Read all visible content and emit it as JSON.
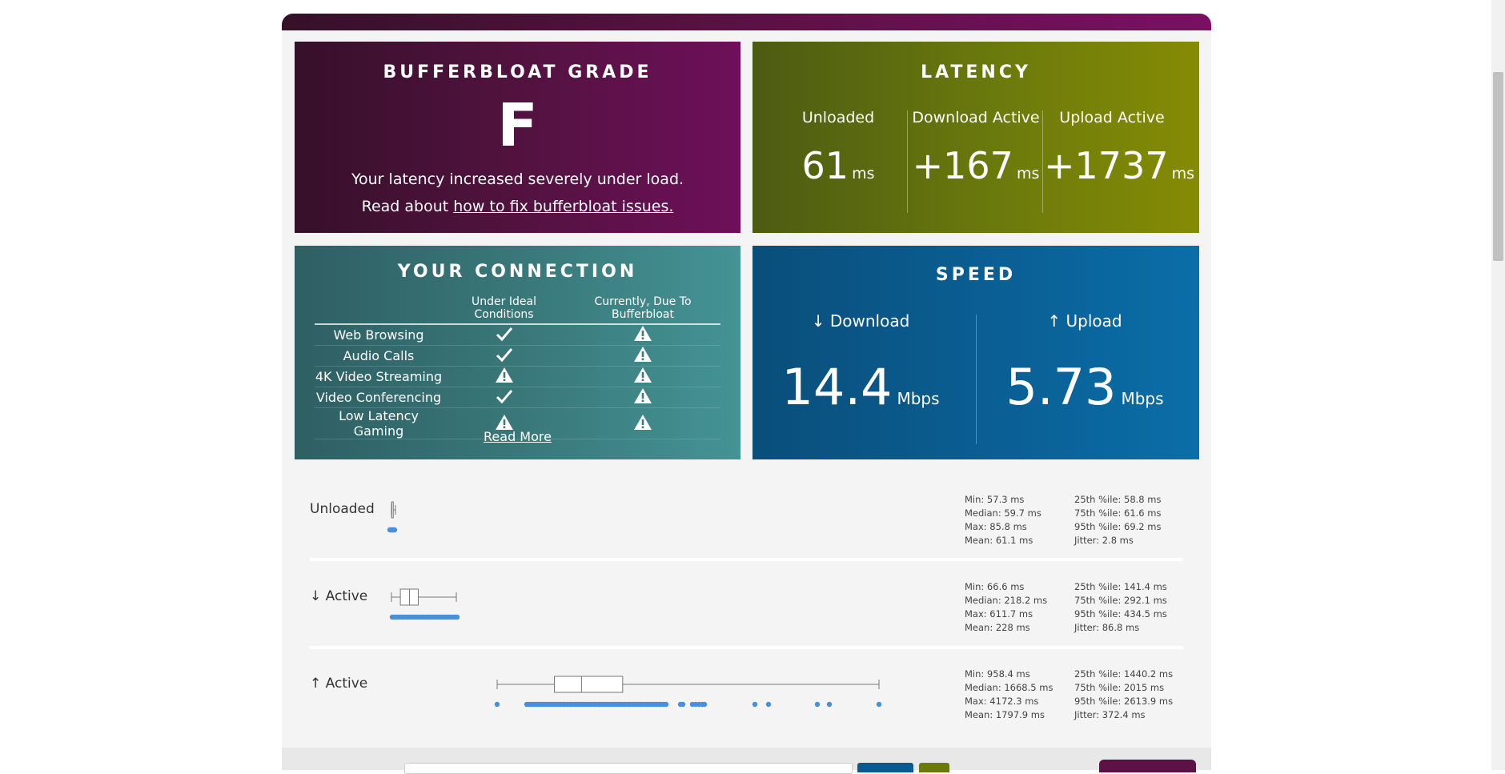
{
  "grade": {
    "title": "BUFFERBLOAT GRADE",
    "letter": "F",
    "description": "Your latency increased severely under load.",
    "read_prefix": "Read about",
    "read_link": "how to fix bufferbloat issues."
  },
  "latency": {
    "title": "LATENCY",
    "columns": [
      {
        "label": "Unloaded",
        "value": "61",
        "unit": "ms"
      },
      {
        "label": "Download Active",
        "value": "+167",
        "unit": "ms"
      },
      {
        "label": "Upload Active",
        "value": "+1737",
        "unit": "ms"
      }
    ]
  },
  "connection": {
    "title": "YOUR CONNECTION",
    "headers": [
      "",
      "Under Ideal Conditions",
      "Currently, Due To Bufferbloat"
    ],
    "rows": [
      {
        "label": "Web Browsing",
        "ideal": "check",
        "current": "warning"
      },
      {
        "label": "Audio Calls",
        "ideal": "check",
        "current": "warning"
      },
      {
        "label": "4K Video Streaming",
        "ideal": "warning",
        "current": "warning"
      },
      {
        "label": "Video Conferencing",
        "ideal": "check",
        "current": "warning"
      },
      {
        "label": "Low Latency Gaming",
        "ideal": "warning",
        "current": "warning"
      }
    ],
    "read_more": "Read More"
  },
  "speed": {
    "title": "SPEED",
    "download": {
      "label": "↓ Download",
      "value": "14.4",
      "unit": "Mbps"
    },
    "upload": {
      "label": "↑ Upload",
      "value": "5.73",
      "unit": "Mbps"
    }
  },
  "plots": [
    {
      "label": "Unloaded",
      "stats_left": [
        "Min: 57.3 ms",
        "Median: 59.7 ms",
        "Max: 85.8 ms",
        "Mean: 61.1 ms"
      ],
      "stats_right": [
        "25th %ile: 58.8 ms",
        "75th %ile: 61.6 ms",
        "95th %ile: 69.2 ms",
        "Jitter: 2.8 ms"
      ],
      "box": {
        "min": 57.3,
        "q1": 58.8,
        "median": 59.7,
        "q3": 61.6,
        "max": 85.8
      }
    },
    {
      "label": "↓ Active",
      "stats_left": [
        "Min: 66.6 ms",
        "Median: 218.2 ms",
        "Max: 611.7 ms",
        "Mean: 228 ms"
      ],
      "stats_right": [
        "25th %ile: 141.4 ms",
        "75th %ile: 292.1 ms",
        "95th %ile: 434.5 ms",
        "Jitter: 86.8 ms"
      ],
      "box": {
        "min": 66.6,
        "q1": 141.4,
        "median": 218.2,
        "q3": 292.1,
        "max": 611.7
      }
    },
    {
      "label": "↑ Active",
      "stats_left": [
        "Min: 958.4 ms",
        "Median: 1668.5 ms",
        "Max: 4172.3 ms",
        "Mean: 1797.9 ms"
      ],
      "stats_right": [
        "25th %ile: 1440.2 ms",
        "75th %ile: 2015 ms",
        "95th %ile: 2613.9 ms",
        "Jitter: 372.4 ms"
      ],
      "box": {
        "min": 958.4,
        "q1": 1440.2,
        "median": 1668.5,
        "q3": 2015,
        "max": 4172.3
      }
    }
  ],
  "colors": {
    "grade_bg": "#52123f",
    "latency_bg": "#6b7a0c",
    "connection_bg": "#3a7a7c",
    "speed_bg": "#0a5f94",
    "dot_color": "#4a8fdc"
  }
}
